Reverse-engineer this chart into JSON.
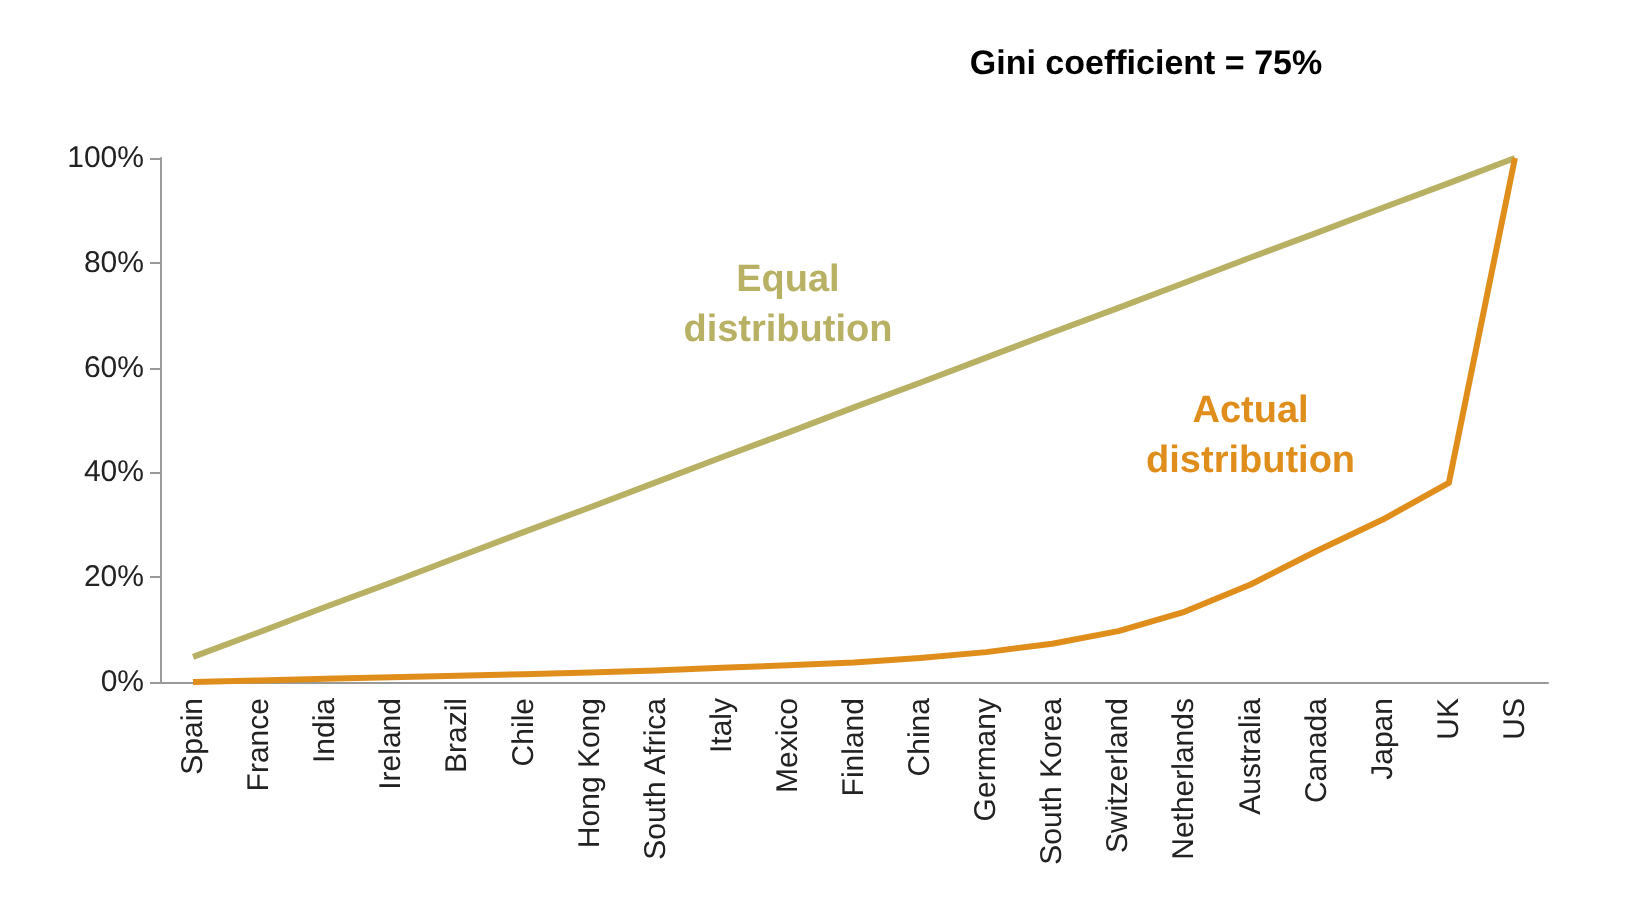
{
  "chart_data": {
    "type": "line",
    "title": "Gini coefficient = 75%",
    "categories": [
      "Spain",
      "France",
      "India",
      "Ireland",
      "Brazil",
      "Chile",
      "Hong Kong",
      "South Africa",
      "Italy",
      "Mexico",
      "Finland",
      "China",
      "Germany",
      "South Korea",
      "Switzerland",
      "Netherlands",
      "Australia",
      "Canada",
      "Japan",
      "UK",
      "US"
    ],
    "series": [
      {
        "name": "Equal distribution",
        "color": "#b8b063",
        "values": [
          4.8,
          9.5,
          14.3,
          19,
          23.8,
          28.6,
          33.3,
          38.1,
          42.9,
          47.6,
          52.4,
          57.1,
          61.9,
          66.7,
          71.4,
          76.2,
          81,
          85.7,
          90.5,
          95.2,
          100
        ]
      },
      {
        "name": "Actual distribution",
        "color": "#e08e1b",
        "values": [
          0,
          0.3,
          0.6,
          0.9,
          1.2,
          1.5,
          1.8,
          2.2,
          2.7,
          3.2,
          3.7,
          4.6,
          5.7,
          7.3,
          9.7,
          13.4,
          18.6,
          25,
          31,
          38,
          100
        ]
      }
    ],
    "ylim": [
      0,
      100
    ],
    "yticks": [
      {
        "value": 0,
        "label": "0%"
      },
      {
        "value": 20,
        "label": "20%"
      },
      {
        "value": 40,
        "label": "40%"
      },
      {
        "value": 60,
        "label": "60%"
      },
      {
        "value": 80,
        "label": "80%"
      },
      {
        "value": 100,
        "label": "100%"
      }
    ],
    "grid": false,
    "legend": false,
    "marker": "none",
    "line_style": "solid"
  }
}
